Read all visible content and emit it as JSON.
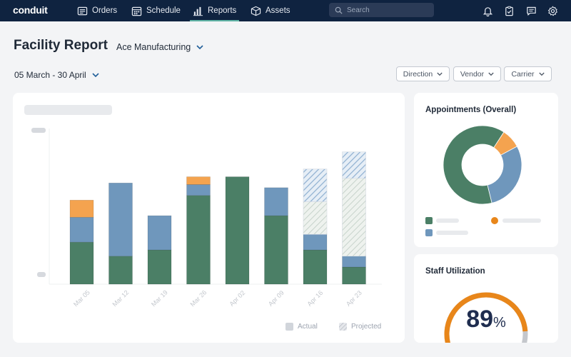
{
  "app": {
    "logo": "conduit"
  },
  "nav": {
    "items": [
      {
        "label": "Orders",
        "icon": "list-icon"
      },
      {
        "label": "Schedule",
        "icon": "calendar-icon"
      },
      {
        "label": "Reports",
        "icon": "bar-chart-icon",
        "active": true
      },
      {
        "label": "Assets",
        "icon": "box-icon"
      }
    ],
    "search_placeholder": "Search"
  },
  "header": {
    "title": "Facility Report",
    "facility": "Ace Manufacturing",
    "date_range": "05 March - 30 April",
    "filters": [
      "Direction",
      "Vendor",
      "Carrier"
    ]
  },
  "chart": {
    "legend": {
      "actual": "Actual",
      "projected": "Projected"
    }
  },
  "chart_data": {
    "type": "bar",
    "stacked": true,
    "categories": [
      "Mar 05",
      "Mar 12",
      "Mar 19",
      "Mar 26",
      "Apr 02",
      "Apr 09",
      "Apr 16",
      "Apr 23"
    ],
    "series": [
      {
        "name": "Actual",
        "segments": [
          {
            "color": "#4b7f66",
            "values": [
              27,
              18,
              22,
              57,
              69,
              44,
              22,
              11
            ]
          },
          {
            "color": "#6f97bc",
            "values": [
              16,
              47,
              22,
              7,
              0,
              18,
              10,
              7
            ]
          },
          {
            "color": "#f4a34f",
            "values": [
              11,
              0,
              0,
              5,
              0,
              0,
              0,
              0
            ]
          }
        ]
      },
      {
        "name": "Projected",
        "segments": [
          {
            "color": "#4b7f66",
            "values": [
              0,
              0,
              0,
              0,
              0,
              0,
              21,
              50
            ]
          },
          {
            "color": "#6f97bc",
            "values": [
              0,
              0,
              0,
              0,
              0,
              0,
              21,
              17
            ]
          }
        ]
      }
    ],
    "ylim": [
      0,
      100
    ]
  },
  "appointments": {
    "title": "Appointments (Overall)",
    "chart_data": {
      "type": "pie",
      "slices": [
        {
          "value": 63,
          "color": "#4b7f66"
        },
        {
          "value": 29,
          "color": "#6f97bc"
        },
        {
          "value": 8,
          "color": "#f4a34f"
        }
      ]
    }
  },
  "staff": {
    "title": "Staff Utilization",
    "value": "89",
    "unit": "%",
    "fraction": 0.89,
    "color": "#e8861a"
  },
  "colors": {
    "nav_bg": "#0f2340",
    "accent": "#5fb3a5",
    "green": "#4b7f66",
    "blue": "#6f97bc",
    "orange": "#f4a34f"
  }
}
